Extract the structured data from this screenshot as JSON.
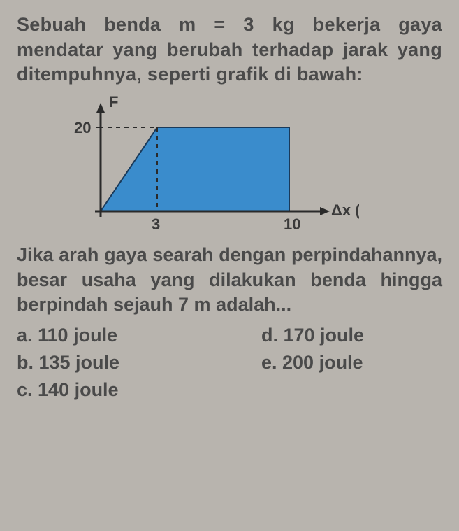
{
  "problem": {
    "intro": "Sebuah benda m = 3 kg bekerja gaya mendatar yang berubah terhadap jarak yang ditempuhnya, seperti grafik di bawah:",
    "question": "Jika arah gaya searah dengan perpindahannya, besar usaha yang dilakukan benda hingga berpindah sejauh 7 m adalah..."
  },
  "chart": {
    "type": "area",
    "y_axis_label": "F",
    "x_axis_label": "Δx (m)",
    "y_tick_value": 20,
    "x_ticks": [
      3,
      10
    ],
    "x_tick_labels": [
      "3",
      "10"
    ],
    "y_tick_label": "20",
    "xlim": [
      0,
      10
    ],
    "ylim": [
      0,
      20
    ],
    "points": [
      [
        0,
        0
      ],
      [
        3,
        20
      ],
      [
        10,
        20
      ],
      [
        10,
        0
      ]
    ],
    "fill_color": "#3a8ccc",
    "fill_opacity": 1,
    "stroke_color": "#1a3a5a",
    "stroke_width": 2,
    "axis_color": "#2a2a2a",
    "axis_width": 3,
    "dash_color": "#2a2a2a",
    "dash_pattern": "6,6",
    "background_color": "#b8b4ae",
    "label_fontsize": 22,
    "tick_fontsize": 22,
    "label_color": "#3a3a3a"
  },
  "options": {
    "a": "a.  110 joule",
    "b": "b.  135 joule",
    "c": "c.  140 joule",
    "d": "d.  170 joule",
    "e": "e.  200 joule"
  }
}
